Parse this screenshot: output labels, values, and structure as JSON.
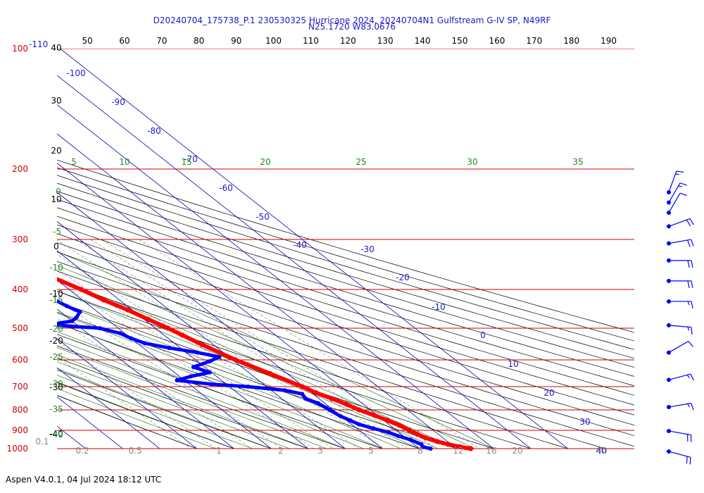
{
  "title_line1": "D20240704_175738_P.1 230530325 Hurricane 2024, 20240704N1 Gulfstream G-IV SP, N49RF",
  "title_line2": "N25.1720 W83.0676",
  "footer": "Aspen V4.0.1, 04 Jul 2024  18:12 UTC",
  "colors": {
    "isobar": "#cc0000",
    "temperature": "#ff0000",
    "dewpoint": "#0000ff",
    "isotherm": "#0000aa",
    "dry_adiabat": "#000000",
    "moist_adiabat": "#006600",
    "mixing_ratio": "#777777",
    "wind_barb": "#0000ff"
  },
  "chart_data": {
    "type": "skew-t",
    "pressure_levels_hpa": [
      "100",
      "200",
      "300",
      "400",
      "500",
      "600",
      "700",
      "800",
      "900",
      "1000"
    ],
    "extra_top_label": "-110",
    "top_temperature_ticks": [
      "50",
      "60",
      "70",
      "80",
      "90",
      "100",
      "110",
      "120",
      "130",
      "140",
      "150",
      "160",
      "170",
      "180",
      "190"
    ],
    "isotherm_labels": [
      "-100",
      "-90",
      "-80",
      "-70",
      "-60",
      "-50",
      "-40",
      "-30",
      "-20",
      "-10",
      "0",
      "10",
      "20",
      "30",
      "40"
    ],
    "theta_labels": [
      "40",
      "30",
      "20",
      "10",
      "0",
      "-10",
      "-20",
      "-30",
      "-40"
    ],
    "moist_labels": [
      "5",
      "10",
      "15",
      "20",
      "25",
      "30",
      "35",
      "0",
      "-5",
      "-10",
      "-15",
      "-20",
      "-25",
      "-30",
      "-35",
      "-40"
    ],
    "mixing_ratio_labels": [
      "0.1",
      "0.2",
      "0.5",
      "1",
      "2",
      "3",
      "5",
      "8",
      "12",
      "16",
      "20",
      "40"
    ],
    "temperature_profile": [
      {
        "p": 1000,
        "t": 33.8
      },
      {
        "p": 990,
        "t": 31.5
      },
      {
        "p": 975,
        "t": 29.2
      },
      {
        "p": 960,
        "t": 27.2
      },
      {
        "p": 940,
        "t": 25.3
      },
      {
        "p": 920,
        "t": 24.3
      },
      {
        "p": 900,
        "t": 23.5
      },
      {
        "p": 875,
        "t": 22.6
      },
      {
        "p": 850,
        "t": 21.0
      },
      {
        "p": 825,
        "t": 19.2
      },
      {
        "p": 800,
        "t": 17.0
      },
      {
        "p": 775,
        "t": 15.5
      },
      {
        "p": 750,
        "t": 13.5
      },
      {
        "p": 725,
        "t": 11.2
      },
      {
        "p": 700,
        "t": 9.6
      },
      {
        "p": 650,
        "t": 5.4
      },
      {
        "p": 600,
        "t": 0.8
      },
      {
        "p": 550,
        "t": -3.0
      },
      {
        "p": 520,
        "t": -5.1
      },
      {
        "p": 500,
        "t": -6.6
      },
      {
        "p": 475,
        "t": -8.9
      },
      {
        "p": 450,
        "t": -11.2
      },
      {
        "p": 425,
        "t": -14.3
      },
      {
        "p": 400,
        "t": -16.7
      },
      {
        "p": 375,
        "t": -20.1
      },
      {
        "p": 350,
        "t": -24.4
      },
      {
        "p": 325,
        "t": -28.6
      },
      {
        "p": 300,
        "t": -32.3
      },
      {
        "p": 285,
        "t": -36.1
      },
      {
        "p": 270,
        "t": -39.1
      },
      {
        "p": 255,
        "t": -42.7
      },
      {
        "p": 240,
        "t": -46.5
      },
      {
        "p": 228,
        "t": -50.3
      }
    ],
    "dewpoint_profile": [
      {
        "p": 1000,
        "t": 23.0
      },
      {
        "p": 990,
        "t": 21.5
      },
      {
        "p": 975,
        "t": 22.0
      },
      {
        "p": 950,
        "t": 20.6
      },
      {
        "p": 930,
        "t": 18.6
      },
      {
        "p": 910,
        "t": 17.2
      },
      {
        "p": 890,
        "t": 14.5
      },
      {
        "p": 870,
        "t": 12.0
      },
      {
        "p": 850,
        "t": 11.0
      },
      {
        "p": 830,
        "t": 9.8
      },
      {
        "p": 800,
        "t": 9.0
      },
      {
        "p": 770,
        "t": 8.2
      },
      {
        "p": 750,
        "t": 6.4
      },
      {
        "p": 730,
        "t": 7.1
      },
      {
        "p": 715,
        "t": 3.6
      },
      {
        "p": 700,
        "t": -5.0
      },
      {
        "p": 690,
        "t": -14.0
      },
      {
        "p": 675,
        "t": -22.0
      },
      {
        "p": 660,
        "t": -17.0
      },
      {
        "p": 645,
        "t": -10.5
      },
      {
        "p": 625,
        "t": -13.0
      },
      {
        "p": 605,
        "t": -6.7
      },
      {
        "p": 590,
        "t": -2.6
      },
      {
        "p": 575,
        "t": -7.0
      },
      {
        "p": 560,
        "t": -13.0
      },
      {
        "p": 545,
        "t": -18.0
      },
      {
        "p": 530,
        "t": -20.0
      },
      {
        "p": 515,
        "t": -21.2
      },
      {
        "p": 500,
        "t": -25.0
      },
      {
        "p": 490,
        "t": -37.6
      },
      {
        "p": 480,
        "t": -30.0
      },
      {
        "p": 470,
        "t": -27.6
      },
      {
        "p": 455,
        "t": -24.7
      },
      {
        "p": 440,
        "t": -26.3
      },
      {
        "p": 425,
        "t": -27.4
      },
      {
        "p": 410,
        "t": -34.0
      },
      {
        "p": 395,
        "t": -32.1
      },
      {
        "p": 385,
        "t": -39.4
      },
      {
        "p": 375,
        "t": -36.0
      },
      {
        "p": 365,
        "t": -40.0
      },
      {
        "p": 355,
        "t": -40.4
      },
      {
        "p": 340,
        "t": -42.0
      },
      {
        "p": 332,
        "t": -45.9
      },
      {
        "p": 320,
        "t": -55.4
      },
      {
        "p": 310,
        "t": -58.2
      },
      {
        "p": 302,
        "t": -60.6
      },
      {
        "p": 297,
        "t": -58.0
      },
      {
        "p": 290,
        "t": -53.0
      },
      {
        "p": 282,
        "t": -46.0
      },
      {
        "p": 275,
        "t": -45.8
      },
      {
        "p": 268,
        "t": -46.4
      }
    ],
    "wind_barbs": [
      {
        "p": 230,
        "speed_kt": 15,
        "dir_deg": 20
      },
      {
        "p": 260,
        "speed_kt": 15,
        "dir_deg": 30
      },
      {
        "p": 290,
        "speed_kt": 10,
        "dir_deg": 30
      },
      {
        "p": 330,
        "speed_kt": 20,
        "dir_deg": 70
      },
      {
        "p": 380,
        "speed_kt": 20,
        "dir_deg": 80
      },
      {
        "p": 430,
        "speed_kt": 20,
        "dir_deg": 90
      },
      {
        "p": 490,
        "speed_kt": 20,
        "dir_deg": 90
      },
      {
        "p": 550,
        "speed_kt": 15,
        "dir_deg": 90
      },
      {
        "p": 620,
        "speed_kt": 15,
        "dir_deg": 95
      },
      {
        "p": 700,
        "speed_kt": 10,
        "dir_deg": 60
      },
      {
        "p": 780,
        "speed_kt": 15,
        "dir_deg": 75
      },
      {
        "p": 860,
        "speed_kt": 15,
        "dir_deg": 80
      },
      {
        "p": 930,
        "speed_kt": 20,
        "dir_deg": 100
      },
      {
        "p": 990,
        "speed_kt": 20,
        "dir_deg": 105
      }
    ]
  }
}
